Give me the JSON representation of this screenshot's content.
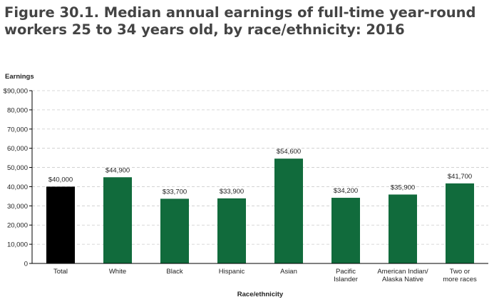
{
  "title": "Figure 30.1. Median annual earnings of full-time year-round workers 25 to 34 years old, by race/ethnicity: 2016",
  "colors": {
    "highlight": "#000000",
    "bar": "#116B3C",
    "grid": "#cccccc",
    "axis": "#000000"
  },
  "chart_data": {
    "type": "bar",
    "title": "Figure 30.1. Median annual earnings of full-time year-round workers 25 to 34 years old, by race/ethnicity: 2016",
    "ylabel": "Earnings",
    "xlabel": "Race/ethnicity",
    "ylim": [
      0,
      90000
    ],
    "yticks": [
      0,
      10000,
      20000,
      30000,
      40000,
      50000,
      60000,
      70000,
      80000,
      90000
    ],
    "ytick_labels": [
      "0",
      "10,000",
      "20,000",
      "30,000",
      "40,000",
      "50,000",
      "60,000",
      "70,000",
      "80,000",
      "$90,000"
    ],
    "grid": true,
    "categories": [
      [
        "Total"
      ],
      [
        "White"
      ],
      [
        "Black"
      ],
      [
        "Hispanic"
      ],
      [
        "Asian"
      ],
      [
        "Pacific",
        "Islander"
      ],
      [
        "American Indian/",
        "Alaska Native"
      ],
      [
        "Two or",
        "more races"
      ]
    ],
    "values": [
      40000,
      44900,
      33700,
      33900,
      54600,
      34200,
      35900,
      41700
    ],
    "value_labels": [
      "$40,000",
      "$44,900",
      "$33,700",
      "$33,900",
      "$54,600",
      "$34,200",
      "$35,900",
      "$41,700"
    ],
    "highlight_index": 0
  }
}
